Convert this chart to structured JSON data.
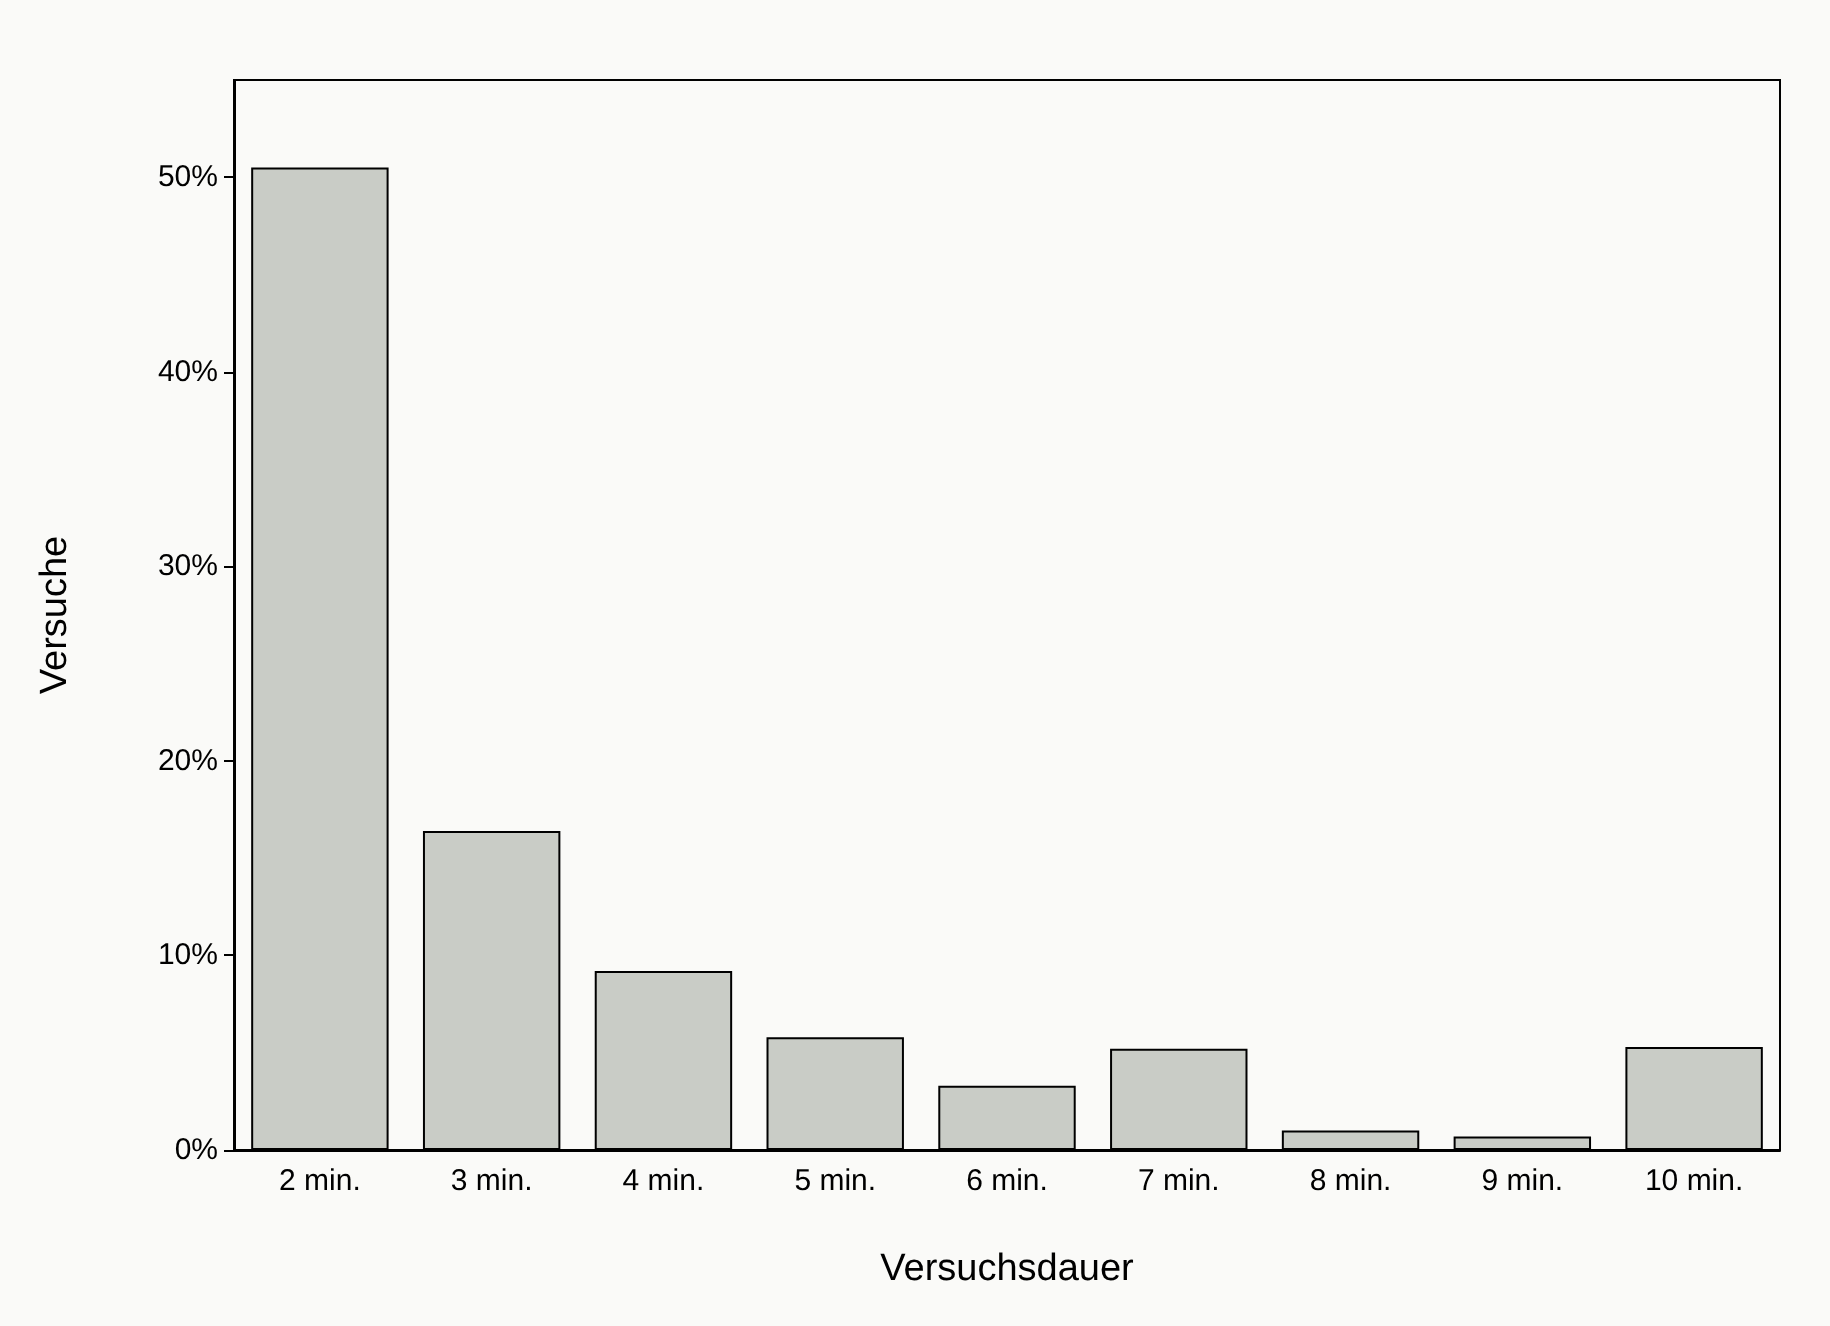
{
  "chart_data": {
    "type": "bar",
    "xlabel": "Versuchsdauer",
    "ylabel": "Versuche",
    "categories": [
      "2 min.",
      "3 min.",
      "4 min.",
      "5 min.",
      "6 min.",
      "7 min.",
      "8 min.",
      "9 min.",
      "10 min."
    ],
    "values": [
      50.5,
      16.4,
      9.2,
      5.8,
      3.3,
      5.2,
      1.0,
      0.7,
      5.3
    ],
    "color": "#c9ccc6",
    "ylim": [
      0,
      55
    ],
    "yticks": [
      {
        "value": 0,
        "label": "0%"
      },
      {
        "value": 10,
        "label": "10%"
      },
      {
        "value": 20,
        "label": "20%"
      },
      {
        "value": 30,
        "label": "30%"
      },
      {
        "value": 40,
        "label": "40%"
      },
      {
        "value": 50,
        "label": "50%"
      }
    ],
    "grid": false
  }
}
